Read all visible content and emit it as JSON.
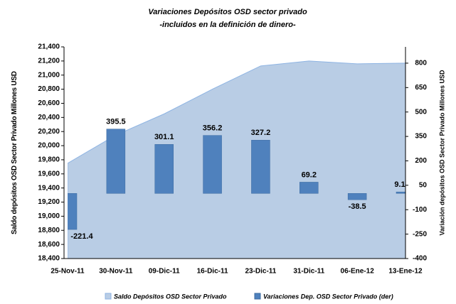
{
  "chart_data": {
    "type": "area-bar",
    "title": "Variaciones Depósitos OSD sector privado",
    "subtitle": "-incluidos en la definición de dinero-",
    "y_label": "Saldo depósitos OSD Sector Privado Millones USD",
    "y2_label": "Variación depósitos OSD Sector Privado Millones USD",
    "categories": [
      "25-Nov-11",
      "30-Nov-11",
      "09-Dic-11",
      "16-Dic-11",
      "23-Dic-11",
      "31-Dic-11",
      "06-Ene-12",
      "13-Ene-12"
    ],
    "series": [
      {
        "name": "Saldo Depósitos OSD Sector Privado",
        "type": "area",
        "color": "#b9cde5",
        "values": [
          19750,
          20150,
          20450,
          20800,
          21130,
          21200,
          21160,
          21170
        ]
      },
      {
        "name": "Variaciones Dep. OSD Sector Privado (der)",
        "type": "bar",
        "axis": "y2",
        "color": "#4f81bd",
        "values": [
          -221.4,
          395.5,
          301.1,
          356.2,
          327.2,
          69.2,
          -38.5,
          9.1
        ]
      }
    ],
    "ylim": [
      18400,
      21400
    ],
    "yticks": [
      {
        "value": 18400,
        "label": "18,400"
      },
      {
        "value": 18600,
        "label": "18,600"
      },
      {
        "value": 18800,
        "label": "18,800"
      },
      {
        "value": 19000,
        "label": "19,000"
      },
      {
        "value": 19200,
        "label": "19,200"
      },
      {
        "value": 19400,
        "label": "19,400"
      },
      {
        "value": 19600,
        "label": "19,600"
      },
      {
        "value": 19800,
        "label": "19,800"
      },
      {
        "value": 20000,
        "label": "20,000"
      },
      {
        "value": 20200,
        "label": "20,200"
      },
      {
        "value": 20400,
        "label": "20,400"
      },
      {
        "value": 20600,
        "label": "20,600"
      },
      {
        "value": 20800,
        "label": "20,800"
      },
      {
        "value": 21000,
        "label": "21,000"
      },
      {
        "value": 21200,
        "label": "21,200"
      },
      {
        "value": 21400,
        "label": "21,400"
      }
    ],
    "y2lim": [
      -400,
      900
    ],
    "y2ticks": [
      -400,
      -250,
      -100,
      50,
      200,
      350,
      500,
      650,
      800
    ],
    "legend": "bottom"
  }
}
